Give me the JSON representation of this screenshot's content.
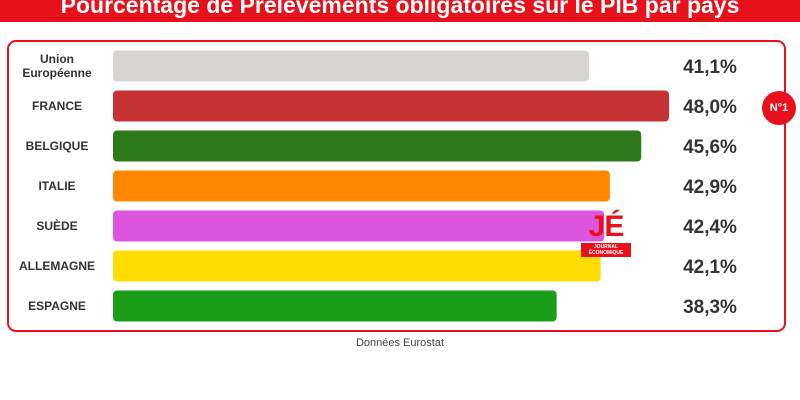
{
  "banner_title": "Pourcentage de Prélèvements obligatoires sur le PIB par pays",
  "chart_data": {
    "type": "bar",
    "orientation": "horizontal",
    "categories": [
      "Union Européenne",
      "FRANCE",
      "BELGIQUE",
      "ITALIE",
      "SUÈDE",
      "ALLEMAGNE",
      "ESPAGNE"
    ],
    "values": [
      41.1,
      48.0,
      45.6,
      42.9,
      42.4,
      42.1,
      38.3
    ],
    "value_labels": [
      "41,1%",
      "48,0%",
      "45,6%",
      "42,9%",
      "42,4%",
      "42,1%",
      "38,3%"
    ],
    "colors": [
      "#d9d4d4",
      "#c73334",
      "#2e7a1b",
      "#ff8800",
      "#dd55dd",
      "#ffdd00",
      "#1a9e1a"
    ],
    "xlim": [
      0,
      48.0
    ],
    "grid": false,
    "legend": "none"
  },
  "badge": "N°1",
  "logo": {
    "big": "JÉ",
    "small1": "JOURNAL",
    "small2": "ÉCONOMIQUE"
  },
  "source": "Données Eurostat"
}
